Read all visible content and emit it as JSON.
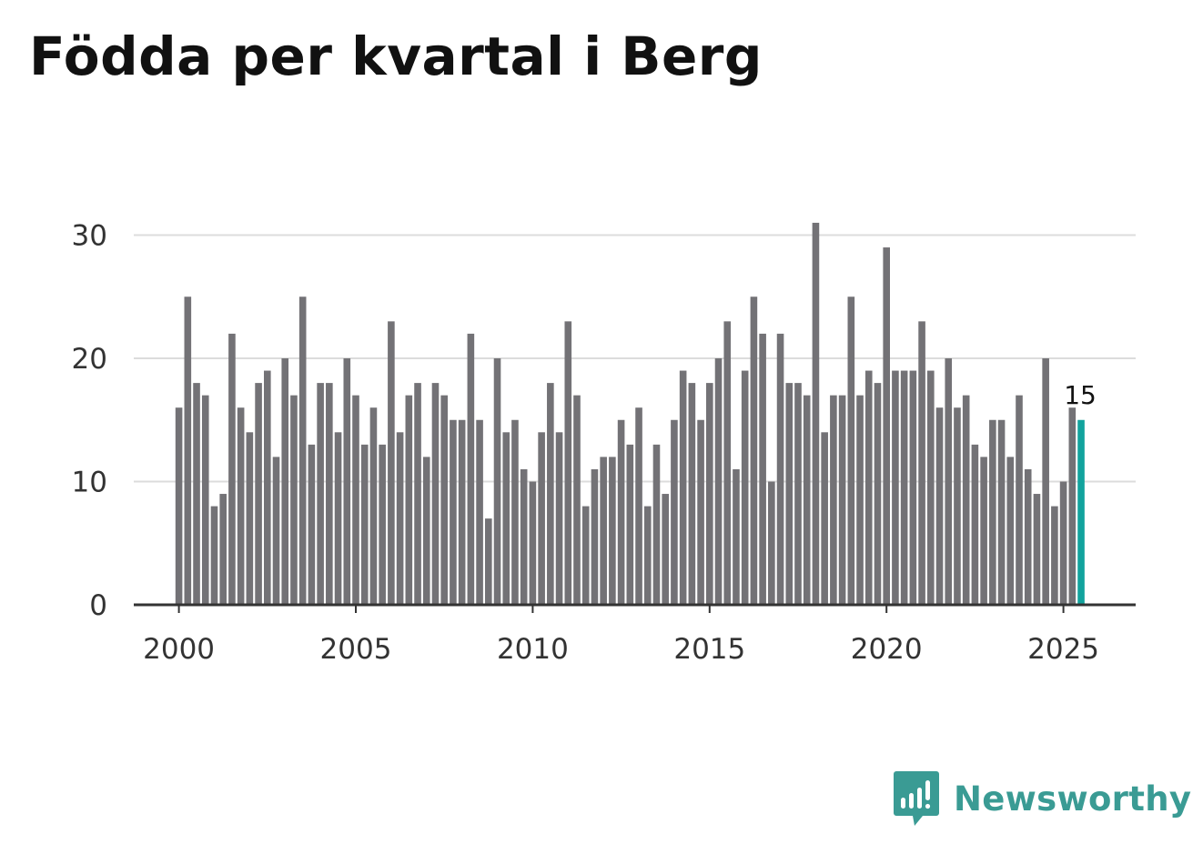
{
  "title": "Födda per kvartal i Berg",
  "brand": {
    "name": "Newsworthy",
    "icon": "newsworthy-logo-icon",
    "color": "#3a9b94"
  },
  "colors": {
    "bar": "#737276",
    "highlight": "#12a39d",
    "grid": "#dcdcdc",
    "axis": "#333333"
  },
  "chart_data": {
    "type": "bar",
    "title": "Födda per kvartal i Berg",
    "xlabel": "",
    "ylabel": "",
    "ylim": [
      0,
      31
    ],
    "grid": true,
    "y_ticks": [
      0,
      10,
      20,
      30
    ],
    "x_ticks": [
      2000,
      2005,
      2010,
      2015,
      2020,
      2025
    ],
    "start": {
      "year": 2000,
      "quarter": 1
    },
    "values": [
      16,
      25,
      18,
      17,
      8,
      9,
      22,
      16,
      14,
      18,
      19,
      12,
      20,
      17,
      25,
      13,
      18,
      18,
      14,
      20,
      17,
      13,
      16,
      13,
      23,
      14,
      17,
      18,
      12,
      18,
      17,
      15,
      15,
      22,
      15,
      7,
      20,
      14,
      15,
      11,
      10,
      14,
      18,
      14,
      23,
      17,
      8,
      11,
      12,
      12,
      15,
      13,
      16,
      8,
      13,
      9,
      15,
      19,
      18,
      15,
      18,
      20,
      23,
      11,
      19,
      25,
      22,
      10,
      22,
      18,
      18,
      17,
      31,
      14,
      17,
      17,
      25,
      17,
      19,
      18,
      29,
      19,
      19,
      19,
      23,
      19,
      16,
      20,
      16,
      17,
      13,
      12,
      15,
      15,
      12,
      17,
      11,
      9,
      20,
      8,
      10,
      16,
      15
    ],
    "highlight_last": true,
    "annotation": {
      "label": "15"
    }
  }
}
